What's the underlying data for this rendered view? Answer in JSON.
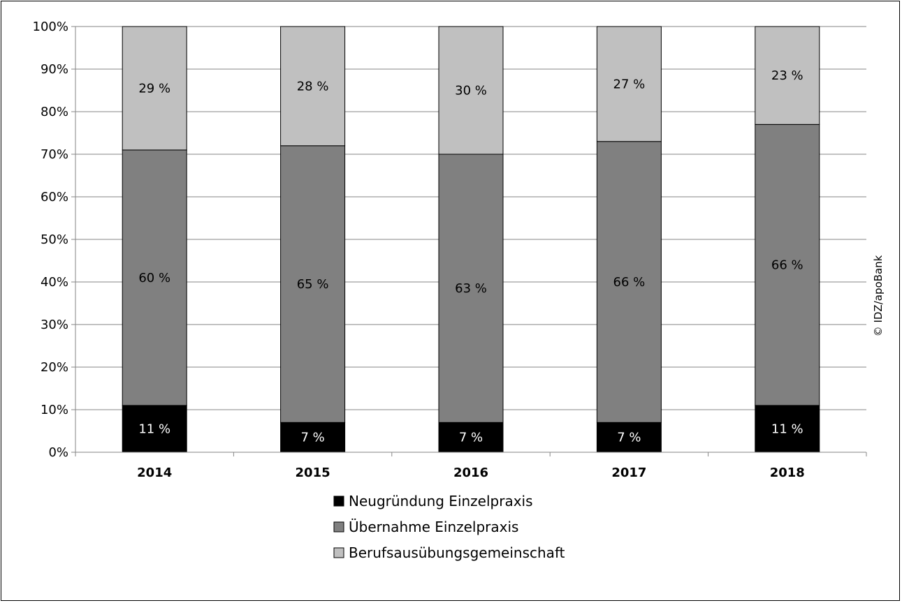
{
  "chart_data": {
    "type": "bar",
    "stacked": true,
    "categories": [
      "2014",
      "2015",
      "2016",
      "2017",
      "2018"
    ],
    "series": [
      {
        "name": "Neugründung Einzelpraxis",
        "values": [
          11,
          7,
          7,
          7,
          11
        ],
        "labels": [
          "11 %",
          "7 %",
          "7 %",
          "7 %",
          "11 %"
        ],
        "color": "#000000",
        "label_color": "#ffffff"
      },
      {
        "name": "Übernahme Einzelpraxis",
        "values": [
          60,
          65,
          63,
          66,
          66
        ],
        "labels": [
          "60 %",
          "65 %",
          "63 %",
          "66 %",
          "66 %"
        ],
        "color": "#808080",
        "label_color": "#000000"
      },
      {
        "name": "Berufsausübungsgemeinschaft",
        "values": [
          29,
          28,
          30,
          27,
          23
        ],
        "labels": [
          "29 %",
          "28 %",
          "30 %",
          "27 %",
          "23 %"
        ],
        "color": "#c0c0c0",
        "label_color": "#000000"
      }
    ],
    "y_ticks": [
      "0%",
      "10%",
      "20%",
      "30%",
      "40%",
      "50%",
      "60%",
      "70%",
      "80%",
      "90%",
      "100%"
    ],
    "ylim": [
      0,
      100
    ],
    "grid": true,
    "legend_position": "bottom",
    "credit": "© IDZ/apoBank"
  }
}
